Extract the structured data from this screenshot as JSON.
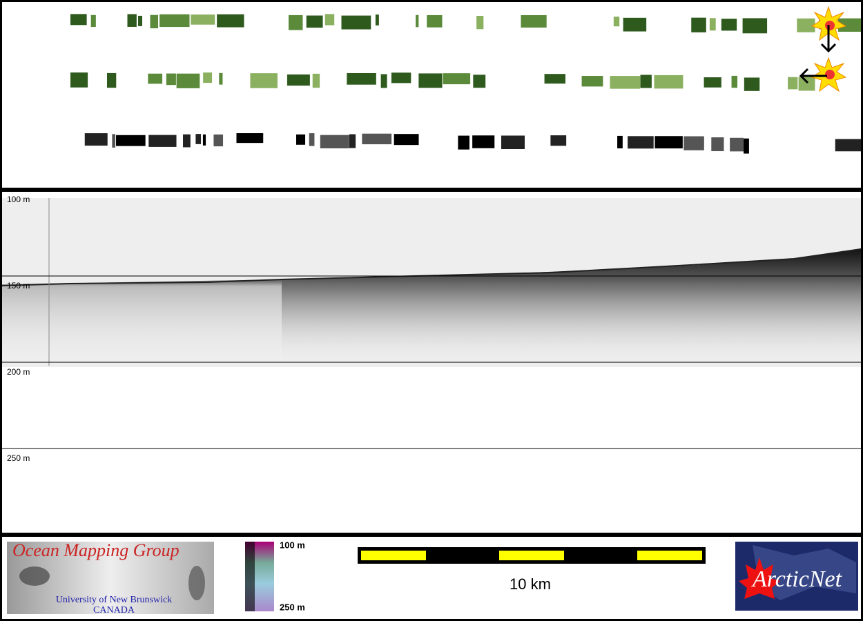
{
  "profile": {
    "depth_labels": [
      "100 m",
      "150 m",
      "200 m",
      "250 m"
    ]
  },
  "footer": {
    "logo_title": "Ocean Mapping Group",
    "logo_line1": "University of New Brunswick",
    "logo_line2": "CANADA",
    "colorbar_top": "100 m",
    "colorbar_bottom": "250 m",
    "scale_label": "10 km",
    "partner_logo": "ArcticNet"
  }
}
